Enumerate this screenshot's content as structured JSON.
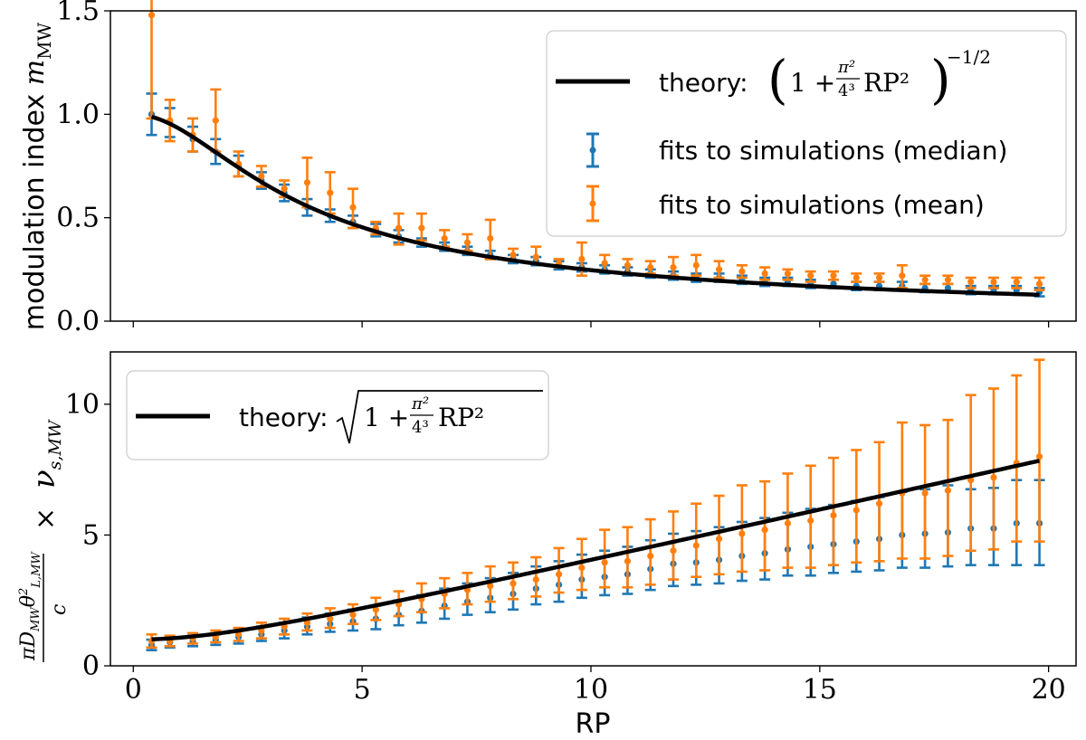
{
  "colors": {
    "median": "#1f77b4",
    "mean": "#ff7f0e",
    "theory": "#000000",
    "frame": "#000000"
  },
  "chart_data": [
    {
      "type": "scatter",
      "panel": "top",
      "title": "",
      "xlabel": "",
      "ylabel": "modulation index m_MW",
      "ylabel_text": "modulation index ",
      "ylabel_math": "m",
      "ylabel_sub": "MW",
      "xlim": [
        -0.5,
        20.6
      ],
      "ylim": [
        0.0,
        1.5
      ],
      "yticks": [
        "0.0",
        "0.5",
        "1.0",
        "1.5"
      ],
      "xticks": [
        0,
        5,
        10,
        15,
        20
      ],
      "legend": {
        "position": "top-right",
        "theory_label": "theory:",
        "theory_formula": "(1 + π²/4³ RP²)^(−1/2)",
        "median_label": "fits to simulations (median)",
        "mean_label": "fits to simulations (mean)"
      },
      "x": [
        0.4,
        0.8,
        1.3,
        1.8,
        2.3,
        2.8,
        3.3,
        3.8,
        4.3,
        4.8,
        5.3,
        5.8,
        6.3,
        6.8,
        7.3,
        7.8,
        8.3,
        8.8,
        9.3,
        9.8,
        10.3,
        10.8,
        11.3,
        11.8,
        12.3,
        12.8,
        13.3,
        13.8,
        14.3,
        14.8,
        15.3,
        15.8,
        16.3,
        16.8,
        17.3,
        17.8,
        18.3,
        18.8,
        19.3,
        19.8
      ],
      "series": [
        {
          "name": "fits to simulations (median)",
          "values": [
            1.0,
            0.96,
            0.88,
            0.82,
            0.75,
            0.68,
            0.62,
            0.55,
            0.51,
            0.48,
            0.44,
            0.41,
            0.38,
            0.36,
            0.34,
            0.32,
            0.3,
            0.29,
            0.27,
            0.26,
            0.25,
            0.24,
            0.23,
            0.22,
            0.21,
            0.21,
            0.2,
            0.19,
            0.19,
            0.18,
            0.18,
            0.17,
            0.17,
            0.17,
            0.16,
            0.16,
            0.15,
            0.15,
            0.15,
            0.14
          ],
          "err_low": [
            0.1,
            0.07,
            0.06,
            0.06,
            0.05,
            0.04,
            0.04,
            0.04,
            0.03,
            0.03,
            0.03,
            0.03,
            0.02,
            0.02,
            0.02,
            0.02,
            0.02,
            0.02,
            0.02,
            0.02,
            0.02,
            0.02,
            0.02,
            0.02,
            0.02,
            0.02,
            0.02,
            0.02,
            0.02,
            0.02,
            0.02,
            0.02,
            0.02,
            0.02,
            0.02,
            0.02,
            0.02,
            0.02,
            0.02,
            0.02
          ],
          "err_high": [
            0.1,
            0.07,
            0.06,
            0.06,
            0.05,
            0.04,
            0.04,
            0.04,
            0.03,
            0.03,
            0.03,
            0.03,
            0.02,
            0.02,
            0.02,
            0.02,
            0.02,
            0.02,
            0.02,
            0.02,
            0.02,
            0.02,
            0.02,
            0.02,
            0.02,
            0.02,
            0.02,
            0.02,
            0.02,
            0.02,
            0.02,
            0.02,
            0.02,
            0.02,
            0.02,
            0.02,
            0.02,
            0.02,
            0.02,
            0.02
          ]
        },
        {
          "name": "fits to simulations (mean)",
          "values": [
            1.48,
            0.97,
            0.9,
            0.97,
            0.76,
            0.7,
            0.64,
            0.67,
            0.62,
            0.55,
            0.45,
            0.45,
            0.45,
            0.4,
            0.38,
            0.4,
            0.32,
            0.31,
            0.28,
            0.3,
            0.28,
            0.27,
            0.26,
            0.26,
            0.27,
            0.25,
            0.24,
            0.23,
            0.23,
            0.22,
            0.22,
            0.21,
            0.21,
            0.22,
            0.2,
            0.2,
            0.19,
            0.19,
            0.19,
            0.18
          ],
          "err_low": [
            0.5,
            0.1,
            0.08,
            0.15,
            0.06,
            0.05,
            0.04,
            0.12,
            0.1,
            0.1,
            0.03,
            0.08,
            0.06,
            0.04,
            0.04,
            0.1,
            0.03,
            0.03,
            0.02,
            0.08,
            0.04,
            0.04,
            0.03,
            0.04,
            0.05,
            0.04,
            0.03,
            0.03,
            0.03,
            0.03,
            0.02,
            0.02,
            0.02,
            0.06,
            0.02,
            0.02,
            0.03,
            0.03,
            0.03,
            0.03
          ],
          "err_high": [
            0.5,
            0.1,
            0.08,
            0.15,
            0.06,
            0.05,
            0.04,
            0.12,
            0.1,
            0.09,
            0.03,
            0.07,
            0.07,
            0.04,
            0.04,
            0.09,
            0.03,
            0.05,
            0.02,
            0.08,
            0.04,
            0.03,
            0.03,
            0.05,
            0.05,
            0.04,
            0.03,
            0.03,
            0.02,
            0.02,
            0.02,
            0.02,
            0.02,
            0.05,
            0.02,
            0.02,
            0.02,
            0.02,
            0.02,
            0.03
          ]
        }
      ],
      "theory": {
        "name": "theory",
        "formula": "(1 + pi^2/4^3 * RP^2)^(-1/2)",
        "x_range": [
          0.4,
          19.8
        ]
      }
    },
    {
      "type": "scatter",
      "panel": "bottom",
      "title": "",
      "xlabel": "RP",
      "ylabel": "(π D_MW θ²_L,MW / c) × ν_s,MW",
      "ylabel_frac_top": "πD",
      "ylabel_frac_bottom": "c",
      "ylabel_times": "×",
      "ylabel_nu": "ν",
      "ylabel_nu_sub": "s,MW",
      "xlim": [
        -0.5,
        20.6
      ],
      "ylim": [
        0,
        12
      ],
      "yticks": [
        "0",
        "5",
        "10"
      ],
      "xticks": [
        "0",
        "5",
        "10",
        "15",
        "20"
      ],
      "legend": {
        "position": "top-left",
        "theory_label": "theory:",
        "theory_formula": "sqrt(1 + π²/4³ RP²)"
      },
      "x": [
        0.4,
        0.8,
        1.3,
        1.8,
        2.3,
        2.8,
        3.3,
        3.8,
        4.3,
        4.8,
        5.3,
        5.8,
        6.3,
        6.8,
        7.3,
        7.8,
        8.3,
        8.8,
        9.3,
        9.8,
        10.3,
        10.8,
        11.3,
        11.8,
        12.3,
        12.8,
        13.3,
        13.8,
        14.3,
        14.8,
        15.3,
        15.8,
        16.3,
        16.8,
        17.3,
        17.8,
        18.3,
        18.8,
        19.3,
        19.8
      ],
      "series": [
        {
          "name": "fits to simulations (median)",
          "values": [
            0.8,
            0.9,
            0.95,
            1.0,
            1.1,
            1.2,
            1.35,
            1.5,
            1.6,
            1.7,
            1.8,
            1.95,
            2.1,
            2.3,
            2.45,
            2.6,
            2.75,
            2.95,
            3.1,
            3.3,
            3.4,
            3.5,
            3.7,
            3.9,
            3.95,
            4.05,
            4.2,
            4.3,
            4.45,
            4.55,
            4.65,
            4.75,
            4.85,
            5.0,
            5.05,
            5.1,
            5.25,
            5.25,
            5.45,
            5.45
          ],
          "err_low": [
            0.2,
            0.2,
            0.2,
            0.2,
            0.25,
            0.25,
            0.3,
            0.3,
            0.3,
            0.35,
            0.4,
            0.4,
            0.45,
            0.5,
            0.5,
            0.55,
            0.6,
            0.6,
            0.65,
            0.7,
            0.7,
            0.75,
            0.8,
            0.85,
            0.85,
            0.9,
            0.95,
            1.0,
            1.0,
            1.1,
            1.1,
            1.15,
            1.2,
            1.25,
            1.3,
            1.3,
            1.4,
            1.4,
            1.6,
            1.6
          ],
          "err_high": [
            0.2,
            0.2,
            0.2,
            0.2,
            0.25,
            0.3,
            0.3,
            0.35,
            0.4,
            0.45,
            0.5,
            0.55,
            0.6,
            0.65,
            0.7,
            0.75,
            0.8,
            0.85,
            0.9,
            0.95,
            1.0,
            1.05,
            1.1,
            1.15,
            1.2,
            1.25,
            1.3,
            1.35,
            1.4,
            1.45,
            1.5,
            1.55,
            1.6,
            1.65,
            1.7,
            1.8,
            1.5,
            1.55,
            1.65,
            1.65
          ]
        },
        {
          "name": "fits to simulations (mean)",
          "values": [
            0.95,
            0.95,
            1.05,
            1.1,
            1.2,
            1.35,
            1.5,
            1.65,
            1.8,
            1.95,
            2.15,
            2.35,
            2.55,
            2.75,
            2.9,
            3.05,
            3.15,
            3.3,
            3.5,
            3.75,
            3.95,
            4.0,
            4.2,
            4.4,
            4.6,
            4.85,
            5.05,
            5.2,
            5.45,
            5.55,
            5.75,
            5.95,
            6.2,
            6.6,
            6.6,
            6.7,
            7.1,
            7.2,
            7.75,
            8.0
          ],
          "err_low": [
            0.25,
            0.2,
            0.2,
            0.2,
            0.25,
            0.3,
            0.3,
            0.3,
            0.35,
            0.35,
            0.4,
            0.45,
            0.5,
            0.55,
            0.55,
            0.6,
            0.6,
            0.65,
            0.7,
            0.85,
            0.95,
            1.0,
            1.1,
            1.1,
            1.2,
            1.35,
            1.45,
            1.55,
            1.7,
            1.8,
            1.9,
            2.0,
            2.2,
            2.5,
            2.5,
            2.5,
            2.7,
            2.75,
            3.0,
            3.25
          ],
          "err_high": [
            0.25,
            0.2,
            0.2,
            0.25,
            0.25,
            0.3,
            0.3,
            0.35,
            0.4,
            0.4,
            0.45,
            0.5,
            0.6,
            0.6,
            0.65,
            0.75,
            0.8,
            0.85,
            1.0,
            1.1,
            1.25,
            1.3,
            1.4,
            1.5,
            1.6,
            1.65,
            1.85,
            1.85,
            1.9,
            2.1,
            2.2,
            2.3,
            2.35,
            2.7,
            2.6,
            2.7,
            3.25,
            3.4,
            3.35,
            3.7
          ]
        }
      ],
      "theory": {
        "name": "theory",
        "formula": "sqrt(1 + pi^2/4^3 * RP^2)",
        "x_range": [
          0.4,
          19.8
        ]
      }
    }
  ]
}
